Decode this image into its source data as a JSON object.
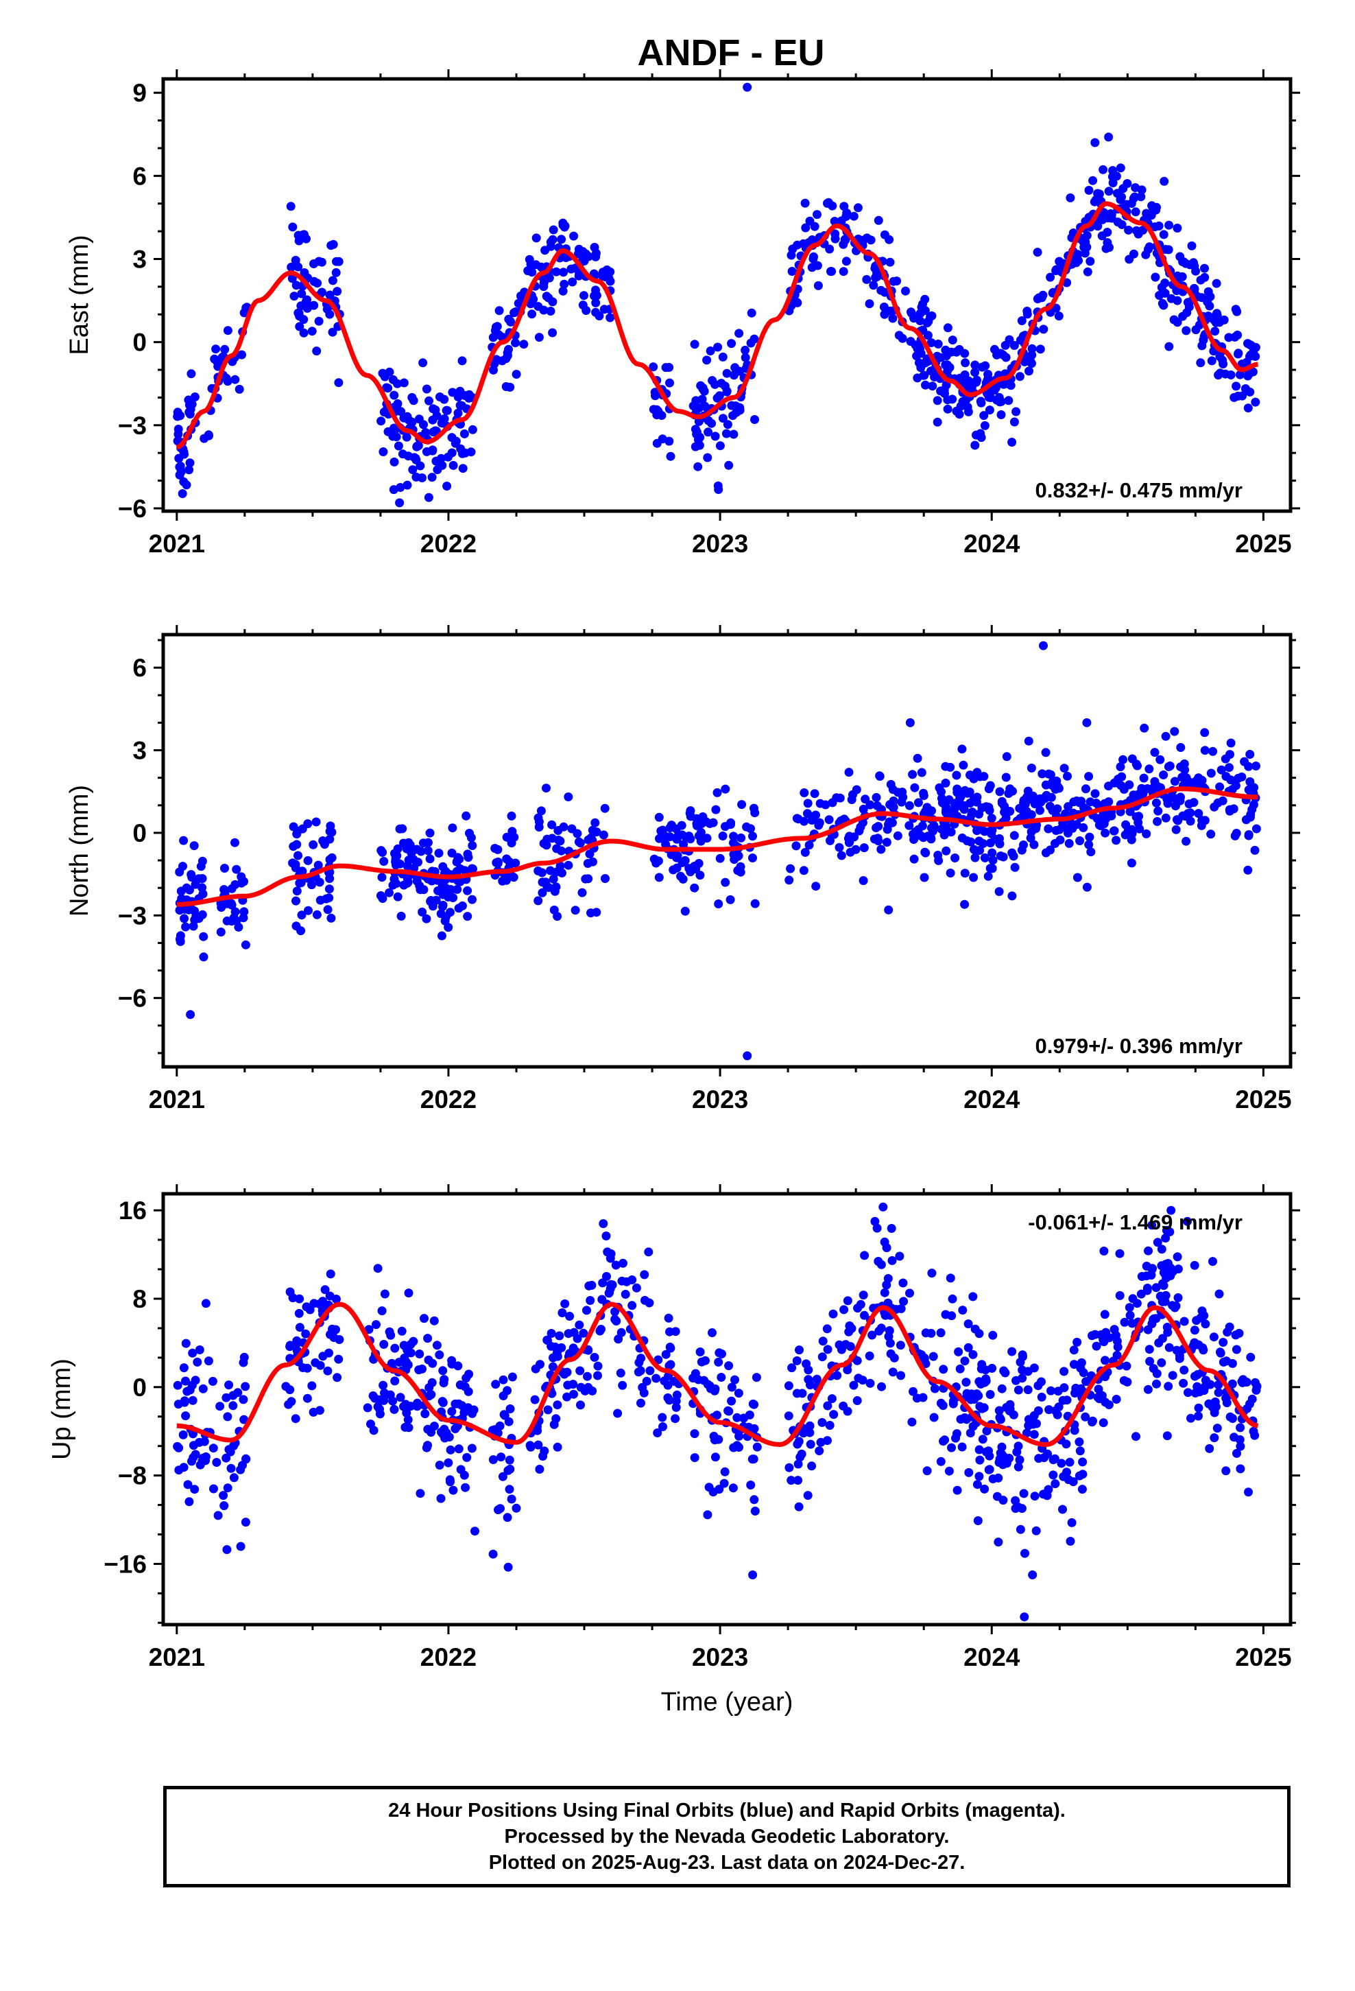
{
  "title": "ANDF - EU",
  "footer": {
    "line1": "24 Hour Positions Using Final Orbits (blue) and Rapid Orbits (magenta).",
    "line2": "Processed by the Nevada Geodetic Laboratory.",
    "line3": "Plotted on 2025-Aug-23. Last data on 2024-Dec-27."
  },
  "colors": {
    "data": "#0000ff",
    "model": "#ff0000",
    "axes": "#000000"
  },
  "chart_data": [
    {
      "type": "scatter",
      "ylabel": "East (mm)",
      "xlabel": "",
      "xlim": [
        2020.95,
        2025.1
      ],
      "ylim": [
        -6.1,
        9.5
      ],
      "xticks": [
        2021,
        2022,
        2023,
        2024,
        2025
      ],
      "yticks": [
        -6,
        -3,
        0,
        3,
        6,
        9
      ],
      "rate_label": "0.832+/- 0.475 mm/yr",
      "rate_position": "bottom-right",
      "model": {
        "x": [
          2021.0,
          2021.1,
          2021.2,
          2021.3,
          2021.42,
          2021.55,
          2021.7,
          2021.85,
          2021.92,
          2022.05,
          2022.2,
          2022.35,
          2022.42,
          2022.55,
          2022.7,
          2022.85,
          2022.92,
          2023.05,
          2023.2,
          2023.35,
          2023.43,
          2023.55,
          2023.7,
          2023.85,
          2023.92,
          2024.05,
          2024.2,
          2024.35,
          2024.42,
          2024.55,
          2024.7,
          2024.85,
          2024.92,
          2024.98
        ],
        "y": [
          -3.8,
          -2.5,
          -0.5,
          1.5,
          2.5,
          1.5,
          -1.2,
          -3.2,
          -3.6,
          -2.8,
          0.0,
          2.5,
          3.3,
          2.2,
          -0.8,
          -2.5,
          -2.7,
          -2.0,
          0.8,
          3.5,
          4.2,
          3.2,
          0.5,
          -1.4,
          -1.9,
          -1.3,
          1.2,
          4.2,
          5.0,
          4.3,
          2.0,
          -0.3,
          -1.0,
          -0.8
        ]
      },
      "series": [
        {
          "name": "Final Orbits",
          "clusters": [
            {
              "x0": 2021.0,
              "x1": 2021.07,
              "n": 35,
              "sd": 1.0,
              "seed": 11
            },
            {
              "x0": 2021.1,
              "x1": 2021.26,
              "n": 30,
              "sd": 0.9,
              "seed": 12
            },
            {
              "x0": 2021.42,
              "x1": 2021.6,
              "n": 55,
              "sd": 1.0,
              "seed": 13
            },
            {
              "x0": 2021.75,
              "x1": 2022.09,
              "n": 120,
              "sd": 1.0,
              "seed": 14
            },
            {
              "x0": 2022.16,
              "x1": 2022.6,
              "n": 130,
              "sd": 0.8,
              "seed": 15
            },
            {
              "x0": 2022.75,
              "x1": 2022.82,
              "n": 20,
              "sd": 1.0,
              "seed": 16
            },
            {
              "x0": 2022.9,
              "x1": 2023.13,
              "n": 80,
              "sd": 1.1,
              "seed": 17
            },
            {
              "x0": 2023.25,
              "x1": 2023.57,
              "n": 70,
              "sd": 0.9,
              "seed": 18
            },
            {
              "x0": 2023.57,
              "x1": 2023.72,
              "n": 35,
              "sd": 0.9,
              "seed": 19
            },
            {
              "x0": 2023.72,
              "x1": 2024.05,
              "n": 140,
              "sd": 0.9,
              "seed": 20
            },
            {
              "x0": 2024.05,
              "x1": 2024.6,
              "n": 160,
              "sd": 0.8,
              "seed": 21
            },
            {
              "x0": 2024.6,
              "x1": 2024.98,
              "n": 130,
              "sd": 0.9,
              "seed": 22
            }
          ],
          "extra_points": [
            [
              2023.1,
              9.2
            ],
            [
              2024.43,
              7.4
            ],
            [
              2024.38,
              7.2
            ],
            [
              2021.42,
              4.9
            ],
            [
              2021.82,
              -5.8
            ]
          ]
        }
      ]
    },
    {
      "type": "scatter",
      "ylabel": "North (mm)",
      "xlabel": "",
      "xlim": [
        2020.95,
        2025.1
      ],
      "ylim": [
        -8.5,
        7.2
      ],
      "xticks": [
        2021,
        2022,
        2023,
        2024,
        2025
      ],
      "yticks": [
        -6,
        -3,
        0,
        3,
        6
      ],
      "rate_label": "0.979+/- 0.396 mm/yr",
      "rate_position": "bottom-right",
      "model": {
        "x": [
          2021.0,
          2021.25,
          2021.45,
          2021.6,
          2021.8,
          2022.0,
          2022.2,
          2022.35,
          2022.6,
          2022.8,
          2023.0,
          2023.3,
          2023.6,
          2023.8,
          2024.0,
          2024.25,
          2024.45,
          2024.7,
          2024.98
        ],
        "y": [
          -2.6,
          -2.3,
          -1.6,
          -1.2,
          -1.4,
          -1.6,
          -1.4,
          -1.1,
          -0.3,
          -0.6,
          -0.6,
          -0.2,
          0.7,
          0.5,
          0.3,
          0.5,
          0.9,
          1.6,
          1.3
        ]
      },
      "series": [
        {
          "name": "Final Orbits",
          "clusters": [
            {
              "x0": 2021.0,
              "x1": 2021.1,
              "n": 40,
              "sd": 1.1,
              "seed": 31
            },
            {
              "x0": 2021.16,
              "x1": 2021.26,
              "n": 30,
              "sd": 1.0,
              "seed": 32
            },
            {
              "x0": 2021.42,
              "x1": 2021.58,
              "n": 50,
              "sd": 1.0,
              "seed": 33
            },
            {
              "x0": 2021.75,
              "x1": 2022.09,
              "n": 120,
              "sd": 0.9,
              "seed": 34
            },
            {
              "x0": 2022.16,
              "x1": 2022.25,
              "n": 25,
              "sd": 1.1,
              "seed": 35
            },
            {
              "x0": 2022.33,
              "x1": 2022.58,
              "n": 60,
              "sd": 1.0,
              "seed": 36
            },
            {
              "x0": 2022.75,
              "x1": 2023.13,
              "n": 90,
              "sd": 0.9,
              "seed": 37
            },
            {
              "x0": 2023.25,
              "x1": 2023.7,
              "n": 90,
              "sd": 0.9,
              "seed": 38
            },
            {
              "x0": 2023.7,
              "x1": 2024.2,
              "n": 190,
              "sd": 0.9,
              "seed": 39
            },
            {
              "x0": 2024.2,
              "x1": 2024.98,
              "n": 230,
              "sd": 0.9,
              "seed": 40
            }
          ],
          "extra_points": [
            [
              2024.19,
              6.8
            ],
            [
              2023.1,
              -8.1
            ],
            [
              2021.05,
              -6.6
            ],
            [
              2024.35,
              4.0
            ],
            [
              2023.7,
              4.0
            ],
            [
              2023.62,
              -2.8
            ],
            [
              2023.9,
              -2.6
            ]
          ]
        }
      ]
    },
    {
      "type": "scatter",
      "ylabel": "Up (mm)",
      "xlabel": "Time (year)",
      "xlim": [
        2020.95,
        2025.1
      ],
      "ylim": [
        -21.5,
        17.5
      ],
      "xticks": [
        2021,
        2022,
        2023,
        2024,
        2025
      ],
      "yticks": [
        -16,
        -8,
        0,
        8,
        16
      ],
      "rate_label": "-0.061+/- 1.469 mm/yr",
      "rate_position": "top-right",
      "model": {
        "x": [
          2021.0,
          2021.2,
          2021.4,
          2021.6,
          2021.8,
          2022.0,
          2022.25,
          2022.45,
          2022.6,
          2022.8,
          2023.0,
          2023.22,
          2023.45,
          2023.6,
          2023.8,
          2024.0,
          2024.2,
          2024.45,
          2024.6,
          2024.8,
          2024.98
        ],
        "y": [
          -3.5,
          -4.8,
          2.0,
          7.5,
          1.5,
          -3.0,
          -5.0,
          2.5,
          7.5,
          1.5,
          -3.2,
          -5.2,
          2.0,
          7.2,
          0.5,
          -3.5,
          -5.2,
          2.0,
          7.2,
          1.5,
          -3.5
        ]
      },
      "series": [
        {
          "name": "Final Orbits",
          "clusters": [
            {
              "x0": 2021.0,
              "x1": 2021.2,
              "n": 60,
              "sd": 4.0,
              "seed": 51
            },
            {
              "x0": 2021.2,
              "x1": 2021.26,
              "n": 18,
              "sd": 4.0,
              "seed": 52
            },
            {
              "x0": 2021.4,
              "x1": 2021.6,
              "n": 60,
              "sd": 3.0,
              "seed": 53
            },
            {
              "x0": 2021.7,
              "x1": 2022.1,
              "n": 130,
              "sd": 4.0,
              "seed": 54
            },
            {
              "x0": 2022.16,
              "x1": 2022.25,
              "n": 30,
              "sd": 4.0,
              "seed": 55
            },
            {
              "x0": 2022.3,
              "x1": 2022.85,
              "n": 150,
              "sd": 3.2,
              "seed": 56
            },
            {
              "x0": 2022.9,
              "x1": 2023.14,
              "n": 70,
              "sd": 4.0,
              "seed": 57
            },
            {
              "x0": 2023.25,
              "x1": 2023.9,
              "n": 170,
              "sd": 3.8,
              "seed": 58
            },
            {
              "x0": 2023.9,
              "x1": 2024.4,
              "n": 190,
              "sd": 4.2,
              "seed": 59
            },
            {
              "x0": 2024.4,
              "x1": 2024.98,
              "n": 200,
              "sd": 3.8,
              "seed": 60
            }
          ],
          "extra_points": [
            [
              2024.12,
              -20.8
            ],
            [
              2023.6,
              16.3
            ],
            [
              2023.57,
              15.0
            ],
            [
              2024.72,
              15.0
            ],
            [
              2024.66,
              16.0
            ],
            [
              2022.57,
              14.8
            ],
            [
              2023.12,
              -17.0
            ],
            [
              2024.15,
              -17.0
            ],
            [
              2022.22,
              -16.3
            ]
          ]
        }
      ]
    }
  ]
}
